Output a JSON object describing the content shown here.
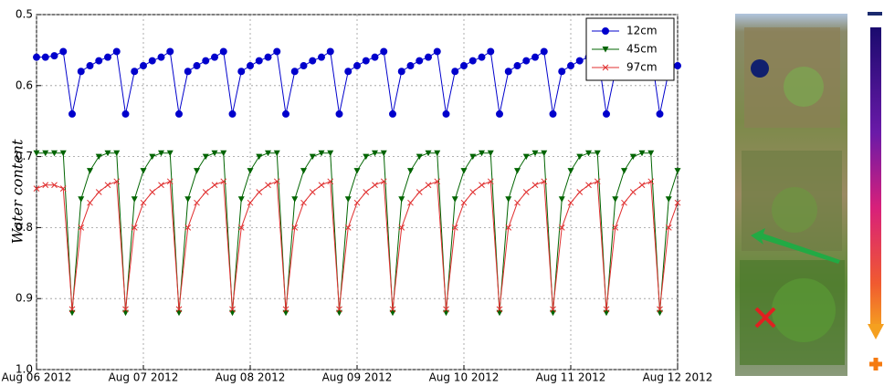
{
  "chart_data": {
    "type": "line",
    "y_label": "Water content",
    "x": [
      "2012-08-06 00:00",
      "2012-08-06 02:00",
      "2012-08-06 04:00",
      "2012-08-06 06:00",
      "2012-08-06 08:00",
      "2012-08-06 10:00",
      "2012-08-06 12:00",
      "2012-08-06 14:00",
      "2012-08-06 16:00",
      "2012-08-06 18:00",
      "2012-08-06 20:00",
      "2012-08-06 22:00",
      "2012-08-07 00:00",
      "2012-08-07 02:00",
      "2012-08-07 04:00",
      "2012-08-07 06:00",
      "2012-08-07 08:00",
      "2012-08-07 10:00",
      "2012-08-07 12:00",
      "2012-08-07 14:00",
      "2012-08-07 16:00",
      "2012-08-07 18:00",
      "2012-08-07 20:00",
      "2012-08-07 22:00",
      "2012-08-08 00:00",
      "2012-08-08 02:00",
      "2012-08-08 04:00",
      "2012-08-08 06:00",
      "2012-08-08 08:00",
      "2012-08-08 10:00",
      "2012-08-08 12:00",
      "2012-08-08 14:00",
      "2012-08-08 16:00",
      "2012-08-08 18:00",
      "2012-08-08 20:00",
      "2012-08-08 22:00",
      "2012-08-09 00:00",
      "2012-08-09 02:00",
      "2012-08-09 04:00",
      "2012-08-09 06:00",
      "2012-08-09 08:00",
      "2012-08-09 10:00",
      "2012-08-09 12:00",
      "2012-08-09 14:00",
      "2012-08-09 16:00",
      "2012-08-09 18:00",
      "2012-08-09 20:00",
      "2012-08-09 22:00",
      "2012-08-10 00:00",
      "2012-08-10 02:00",
      "2012-08-10 04:00",
      "2012-08-10 06:00",
      "2012-08-10 08:00",
      "2012-08-10 10:00",
      "2012-08-10 12:00",
      "2012-08-10 14:00",
      "2012-08-10 16:00",
      "2012-08-10 18:00",
      "2012-08-10 20:00",
      "2012-08-10 22:00",
      "2012-08-11 00:00",
      "2012-08-11 02:00",
      "2012-08-11 04:00",
      "2012-08-11 06:00",
      "2012-08-11 08:00",
      "2012-08-11 10:00",
      "2012-08-11 12:00",
      "2012-08-11 14:00",
      "2012-08-11 16:00",
      "2012-08-11 18:00",
      "2012-08-11 20:00",
      "2012-08-11 22:00",
      "2012-08-12 00:00"
    ],
    "series": [
      {
        "name": "12cm",
        "color": "#0000cc",
        "marker": "circle",
        "values": [
          0.56,
          0.56,
          0.558,
          0.552,
          0.64,
          0.58,
          0.572,
          0.565,
          0.56,
          0.552,
          0.64,
          0.58,
          0.572,
          0.565,
          0.56,
          0.552,
          0.64,
          0.58,
          0.572,
          0.565,
          0.56,
          0.552,
          0.64,
          0.58,
          0.572,
          0.565,
          0.56,
          0.552,
          0.64,
          0.58,
          0.572,
          0.565,
          0.56,
          0.552,
          0.64,
          0.58,
          0.572,
          0.565,
          0.56,
          0.552,
          0.64,
          0.58,
          0.572,
          0.565,
          0.56,
          0.552,
          0.64,
          0.58,
          0.572,
          0.565,
          0.56,
          0.552,
          0.64,
          0.58,
          0.572,
          0.565,
          0.56,
          0.552,
          0.64,
          0.58,
          0.572,
          0.565,
          0.56,
          0.552,
          0.64,
          0.58,
          0.572,
          0.565,
          0.56,
          0.552,
          0.64,
          0.58,
          0.572
        ]
      },
      {
        "name": "45cm",
        "color": "#006400",
        "marker": "triangle-down",
        "values": [
          0.695,
          0.695,
          0.695,
          0.695,
          0.92,
          0.76,
          0.72,
          0.7,
          0.695,
          0.695,
          0.92,
          0.76,
          0.72,
          0.7,
          0.695,
          0.695,
          0.92,
          0.76,
          0.72,
          0.7,
          0.695,
          0.695,
          0.92,
          0.76,
          0.72,
          0.7,
          0.695,
          0.695,
          0.92,
          0.76,
          0.72,
          0.7,
          0.695,
          0.695,
          0.92,
          0.76,
          0.72,
          0.7,
          0.695,
          0.695,
          0.92,
          0.76,
          0.72,
          0.7,
          0.695,
          0.695,
          0.92,
          0.76,
          0.72,
          0.7,
          0.695,
          0.695,
          0.92,
          0.76,
          0.72,
          0.7,
          0.695,
          0.695,
          0.92,
          0.76,
          0.72,
          0.7,
          0.695,
          0.695,
          0.92,
          0.76,
          0.72,
          0.7,
          0.695,
          0.695,
          0.92,
          0.76,
          0.72
        ]
      },
      {
        "name": "97cm",
        "color": "#e03030",
        "marker": "x",
        "values": [
          0.745,
          0.74,
          0.74,
          0.745,
          0.915,
          0.8,
          0.765,
          0.75,
          0.74,
          0.735,
          0.915,
          0.8,
          0.765,
          0.75,
          0.74,
          0.735,
          0.915,
          0.8,
          0.765,
          0.75,
          0.74,
          0.735,
          0.915,
          0.8,
          0.765,
          0.75,
          0.74,
          0.735,
          0.915,
          0.8,
          0.765,
          0.75,
          0.74,
          0.735,
          0.915,
          0.8,
          0.765,
          0.75,
          0.74,
          0.735,
          0.915,
          0.8,
          0.765,
          0.75,
          0.74,
          0.735,
          0.915,
          0.8,
          0.765,
          0.75,
          0.74,
          0.735,
          0.915,
          0.8,
          0.765,
          0.75,
          0.74,
          0.735,
          0.915,
          0.8,
          0.765,
          0.75,
          0.74,
          0.735,
          0.915,
          0.8,
          0.765,
          0.75,
          0.74,
          0.735,
          0.915,
          0.8,
          0.765
        ]
      }
    ],
    "xlim": [
      "2012-08-06 00:00",
      "2012-08-12 00:00"
    ],
    "xticks": [
      {
        "value": "2012-08-06 00:00",
        "label": "Aug 06 2012"
      },
      {
        "value": "2012-08-07 00:00",
        "label": "Aug 07 2012"
      },
      {
        "value": "2012-08-08 00:00",
        "label": "Aug 08 2012"
      },
      {
        "value": "2012-08-09 00:00",
        "label": "Aug 09 2012"
      },
      {
        "value": "2012-08-10 00:00",
        "label": "Aug 10 2012"
      },
      {
        "value": "2012-08-11 00:00",
        "label": "Aug 11 2012"
      },
      {
        "value": "2012-08-12 00:00",
        "label": "Aug 12 2012"
      }
    ],
    "ylim": [
      1,
      0.5
    ],
    "yticks": [
      0.5,
      0.6,
      0.7,
      0.8,
      0.9,
      {
        "value": 1,
        "label": "1.0"
      }
    ],
    "grid": true,
    "legend": "upper right"
  }
}
